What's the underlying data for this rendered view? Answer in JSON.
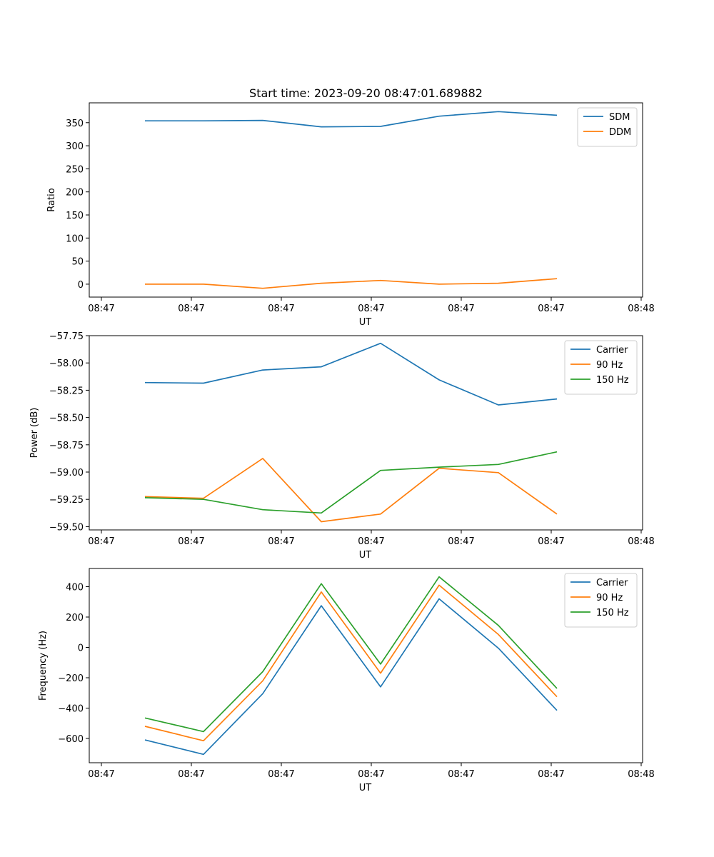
{
  "chart_data": [
    {
      "type": "line",
      "title": "Start time: 2023-09-20 08:47:01.689882",
      "xlabel": "UT",
      "ylabel": "Ratio",
      "x_tick_labels": [
        "08:47",
        "08:47",
        "08:47",
        "08:47",
        "08:47",
        "08:47",
        "08:47",
        "08:48"
      ],
      "x_sample_index": [
        0,
        1,
        2,
        3,
        4,
        5,
        6,
        7
      ],
      "y_ticks": [
        0,
        50,
        100,
        150,
        200,
        250,
        300,
        350
      ],
      "ylim": [
        -28,
        393
      ],
      "legend_position": "top-right",
      "series": [
        {
          "name": "SDM",
          "color": "#1f77b4",
          "values": [
            354,
            354,
            355,
            341,
            342,
            364,
            374,
            366
          ]
        },
        {
          "name": "DDM",
          "color": "#ff7f0e",
          "values": [
            0,
            0,
            -9,
            2,
            8,
            0,
            2,
            12
          ]
        }
      ]
    },
    {
      "type": "line",
      "title": "",
      "xlabel": "UT",
      "ylabel": "Power (dB)",
      "x_tick_labels": [
        "08:47",
        "08:47",
        "08:47",
        "08:47",
        "08:47",
        "08:47",
        "08:47",
        "08:48"
      ],
      "x_sample_index": [
        0,
        1,
        2,
        3,
        4,
        5,
        6,
        7
      ],
      "y_ticks": [
        -57.75,
        -58.0,
        -58.25,
        -58.5,
        -58.75,
        -59.0,
        -59.25,
        -59.5
      ],
      "y_tick_labels": [
        "−57.75",
        "−58.00",
        "−58.25",
        "−58.50",
        "−58.75",
        "−59.00",
        "−59.25",
        "−59.50"
      ],
      "ylim": [
        -59.53,
        -57.75
      ],
      "legend_position": "top-right",
      "series": [
        {
          "name": "Carrier",
          "color": "#1f77b4",
          "values": [
            -58.18,
            -58.185,
            -58.065,
            -58.035,
            -57.82,
            -58.155,
            -58.385,
            -58.33
          ]
        },
        {
          "name": "90 Hz",
          "color": "#ff7f0e",
          "values": [
            -59.225,
            -59.24,
            -58.875,
            -59.455,
            -59.385,
            -58.965,
            -59.005,
            -59.385
          ]
        },
        {
          "name": "150 Hz",
          "color": "#2ca02c",
          "values": [
            -59.235,
            -59.25,
            -59.345,
            -59.375,
            -58.985,
            -58.955,
            -58.93,
            -58.815
          ]
        }
      ]
    },
    {
      "type": "line",
      "title": "",
      "xlabel": "UT",
      "ylabel": "Frequency (Hz)",
      "x_tick_labels": [
        "08:47",
        "08:47",
        "08:47",
        "08:47",
        "08:47",
        "08:47",
        "08:47",
        "08:48"
      ],
      "x_sample_index": [
        0,
        1,
        2,
        3,
        4,
        5,
        6,
        7
      ],
      "y_ticks": [
        -600,
        -400,
        -200,
        0,
        200,
        400
      ],
      "y_tick_labels": [
        "−600",
        "−400",
        "−200",
        "0",
        "200",
        "400"
      ],
      "ylim": [
        -760,
        520
      ],
      "legend_position": "top-right",
      "series": [
        {
          "name": "Carrier",
          "color": "#1f77b4",
          "values": [
            -610,
            -705,
            -305,
            275,
            -260,
            320,
            -5,
            -415
          ]
        },
        {
          "name": "90 Hz",
          "color": "#ff7f0e",
          "values": [
            -520,
            -615,
            -220,
            365,
            -170,
            410,
            85,
            -325
          ]
        },
        {
          "name": "150 Hz",
          "color": "#2ca02c",
          "values": [
            -465,
            -555,
            -160,
            420,
            -110,
            465,
            145,
            -270
          ]
        }
      ]
    }
  ]
}
